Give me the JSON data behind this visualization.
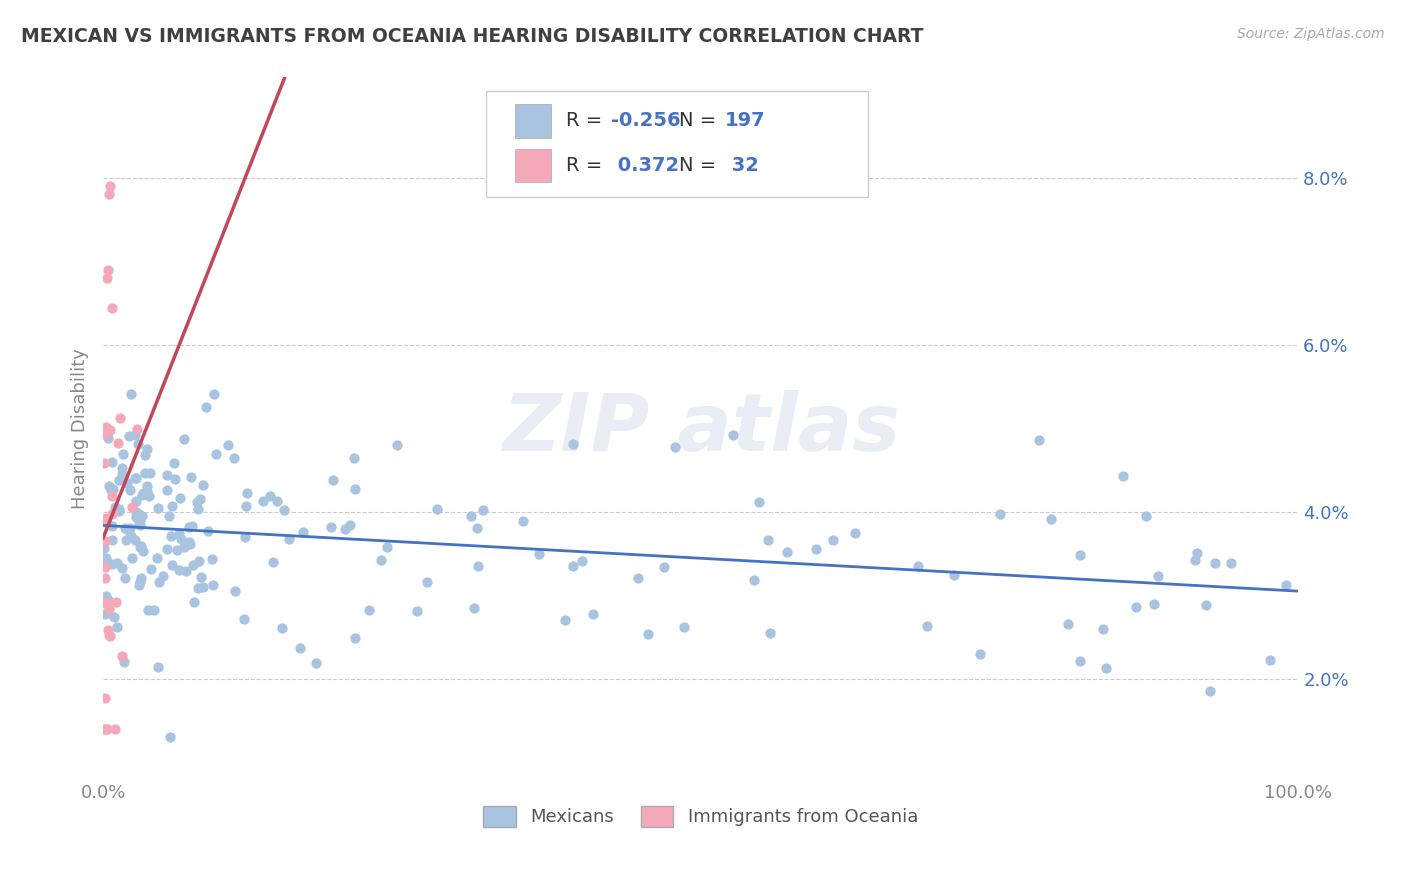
{
  "title": "MEXICAN VS IMMIGRANTS FROM OCEANIA HEARING DISABILITY CORRELATION CHART",
  "source": "Source: ZipAtlas.com",
  "ylabel": "Hearing Disability",
  "xlim": [
    0.0,
    1.0
  ],
  "ylim": [
    0.008,
    0.092
  ],
  "yticks": [
    0.02,
    0.04,
    0.06,
    0.08
  ],
  "ytick_labels": [
    "2.0%",
    "4.0%",
    "6.0%",
    "8.0%"
  ],
  "blue_R": -0.256,
  "blue_N": 197,
  "pink_R": 0.372,
  "pink_N": 32,
  "blue_color": "#a8c4e0",
  "pink_color": "#f4a8b8",
  "blue_line_color": "#4472c4",
  "pink_line_color": "#c0485a",
  "title_color": "#404040",
  "legend_R_color": "#4472c4",
  "tick_color": "#4472c4",
  "background_color": "#ffffff",
  "grid_color": "#cccccc"
}
